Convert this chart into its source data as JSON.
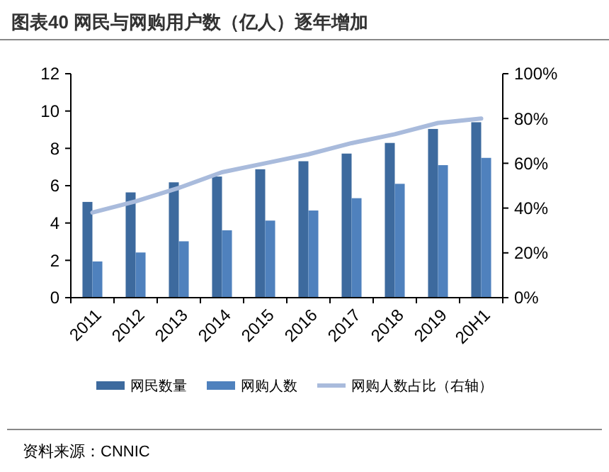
{
  "chart_data": {
    "type": "bar",
    "title": "图表40 网民与网购用户数（亿人）逐年增加",
    "categories": [
      "2011",
      "2012",
      "2013",
      "2014",
      "2015",
      "2016",
      "2017",
      "2018",
      "2019",
      "20H1"
    ],
    "series": [
      {
        "name": "网民数量",
        "color": "#3d6a9e",
        "values": [
          5.13,
          5.64,
          6.18,
          6.49,
          6.88,
          7.31,
          7.72,
          8.29,
          9.04,
          9.4
        ]
      },
      {
        "name": "网购人数",
        "color": "#4f81bd",
        "values": [
          1.94,
          2.42,
          3.02,
          3.61,
          4.13,
          4.67,
          5.33,
          6.1,
          7.1,
          7.49
        ]
      },
      {
        "name": "网购人数占比（右轴）",
        "type": "line",
        "axis": "y2",
        "color": "#a9bbdc",
        "values": [
          38,
          43,
          49,
          56,
          60,
          64,
          69,
          73,
          78,
          80
        ]
      }
    ],
    "ylim": [
      0,
      12
    ],
    "yticks": [
      0,
      2,
      4,
      6,
      8,
      10,
      12
    ],
    "y2lim": [
      0,
      100
    ],
    "y2ticks": [
      {
        "value": 0,
        "label": "0%"
      },
      {
        "value": 20,
        "label": "20%"
      },
      {
        "value": 40,
        "label": "40%"
      },
      {
        "value": 60,
        "label": "60%"
      },
      {
        "value": 80,
        "label": "80%"
      },
      {
        "value": 100,
        "label": "100%"
      }
    ],
    "legend": "bottom",
    "annotations": [
      "资料来源：CNNIC"
    ]
  }
}
